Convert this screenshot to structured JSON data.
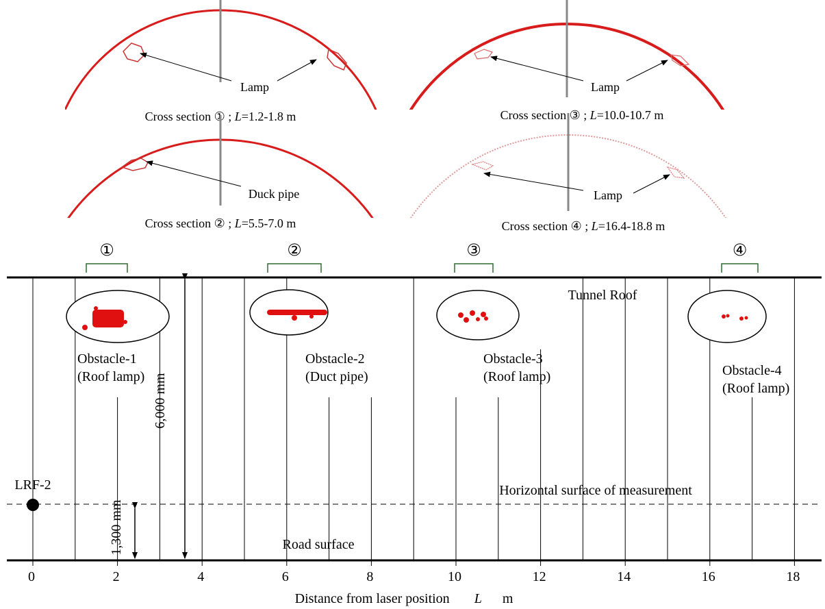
{
  "cross_sections": [
    {
      "caption": {
        "text": "Cross section ① ; ",
        "variable": "L",
        "range": "=1.2-1.8 m"
      },
      "label": "Lamp"
    },
    {
      "caption": {
        "text": "Cross section ② ; ",
        "variable": "L",
        "range": "=5.5-7.0 m"
      },
      "label": "Duck pipe"
    },
    {
      "caption": {
        "text": "Cross section ③ ; ",
        "variable": "L",
        "range": "=10.0-10.7 m"
      },
      "label": "Lamp"
    },
    {
      "caption": {
        "text": "Cross section ④ ; ",
        "variable": "L",
        "range": "=16.4-18.8 m"
      },
      "label": "Lamp"
    }
  ],
  "markers": [
    "①",
    "②",
    "③",
    "④"
  ],
  "diagram": {
    "roof_label": "Tunnel Roof",
    "obstacles": [
      {
        "name": "Obstacle-1",
        "description": "(Roof lamp)"
      },
      {
        "name": "Obstacle-2",
        "description": "(Duct pipe)"
      },
      {
        "name": "Obstacle-3",
        "description": "(Roof lamp)"
      },
      {
        "name": "Obstacle-4",
        "description": "(Roof lamp)"
      }
    ],
    "lrf_label": "LRF-2",
    "height_label": "6,000 mm",
    "laser_height_label": "1,300 mm",
    "measurement_plane_label": "Horizontal surface of measurement",
    "road_label": "Road surface",
    "x_tick_labels": [
      "0",
      "2",
      "4",
      "6",
      "8",
      "10",
      "12",
      "14",
      "16",
      "18"
    ],
    "x_axis_label": {
      "text": "Distance from laser position",
      "variable": "L",
      "unit": "m"
    }
  }
}
